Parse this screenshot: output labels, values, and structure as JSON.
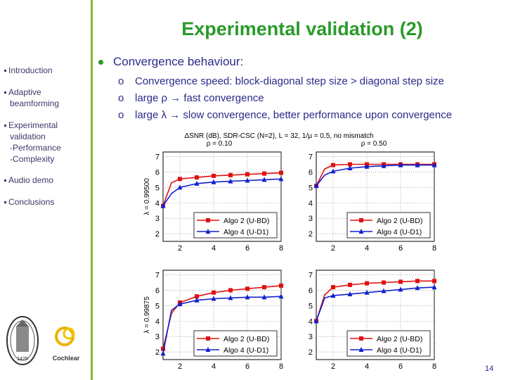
{
  "slide": {
    "title": "Experimental validation (2)",
    "page_number": "14",
    "main_bullet": "Convergence behaviour:",
    "sub_marker": "o",
    "sub_bullets": [
      "Convergence speed: block-diagonal step size > diagonal step size",
      "large ρ → fast convergence",
      "large λ → slow convergence, better performance upon convergence"
    ]
  },
  "sidebar": {
    "items": [
      {
        "lines": [
          "Introduction"
        ]
      },
      {
        "lines": [
          "Adaptive",
          "beamforming"
        ]
      },
      {
        "lines": [
          "Experimental",
          "validation",
          "-Performance",
          "-Complexity"
        ]
      },
      {
        "lines": [
          "Audio demo"
        ]
      },
      {
        "lines": [
          "Conclusions"
        ]
      }
    ]
  },
  "logos": {
    "seal_text": "1425",
    "cochlear_text": "Cochlear"
  },
  "colors": {
    "title": "#2a9a2a",
    "text": "#2a2a8a",
    "sidebar_line": "#86b92f",
    "series_bd": "#e01010",
    "series_d1": "#1020d0"
  },
  "chart_data": {
    "type": "line",
    "title": "ΔSNR (dB), SDR-CSC (N=2), L = 32, 1/μ = 0.5, no mismatch",
    "col_labels": [
      "ρ = 0.10",
      "ρ = 0.50"
    ],
    "row_labels": [
      "λ = 0.99500",
      "λ = 0.99875"
    ],
    "x": [
      1,
      1.5,
      2,
      3,
      4,
      5,
      6,
      7,
      8
    ],
    "xticks": [
      2,
      4,
      6,
      8
    ],
    "yticks": [
      2,
      3,
      4,
      5,
      6,
      7
    ],
    "xlim": [
      1,
      8
    ],
    "ylim": [
      1.5,
      7.3
    ],
    "legend": [
      "Algo 2 (U-BD)",
      "Algo 4 (U-D1)"
    ],
    "panels": [
      {
        "row": 0,
        "col": 0,
        "series": [
          {
            "name": "Algo 2 (U-BD)",
            "values": [
              3.8,
              5.3,
              5.55,
              5.65,
              5.75,
              5.8,
              5.85,
              5.9,
              5.95
            ]
          },
          {
            "name": "Algo 4 (U-D1)",
            "values": [
              3.8,
              4.6,
              5.0,
              5.25,
              5.35,
              5.4,
              5.45,
              5.5,
              5.55
            ]
          }
        ]
      },
      {
        "row": 0,
        "col": 1,
        "series": [
          {
            "name": "Algo 2 (U-BD)",
            "values": [
              5.1,
              6.2,
              6.45,
              6.5,
              6.5,
              6.5,
              6.5,
              6.5,
              6.5
            ]
          },
          {
            "name": "Algo 4 (U-D1)",
            "values": [
              5.1,
              5.8,
              6.05,
              6.25,
              6.35,
              6.4,
              6.45,
              6.45,
              6.45
            ]
          }
        ]
      },
      {
        "row": 1,
        "col": 0,
        "series": [
          {
            "name": "Algo 2 (U-BD)",
            "values": [
              2.2,
              4.5,
              5.2,
              5.6,
              5.85,
              6.0,
              6.1,
              6.2,
              6.3
            ]
          },
          {
            "name": "Algo 4 (U-D1)",
            "values": [
              1.9,
              4.7,
              5.1,
              5.35,
              5.45,
              5.5,
              5.55,
              5.55,
              5.6
            ]
          }
        ]
      },
      {
        "row": 1,
        "col": 1,
        "series": [
          {
            "name": "Algo 2 (U-BD)",
            "values": [
              4.0,
              5.7,
              6.2,
              6.35,
              6.45,
              6.5,
              6.55,
              6.6,
              6.6
            ]
          },
          {
            "name": "Algo 4 (U-D1)",
            "values": [
              4.0,
              5.5,
              5.65,
              5.75,
              5.85,
              5.95,
              6.05,
              6.15,
              6.2
            ]
          }
        ]
      }
    ]
  }
}
